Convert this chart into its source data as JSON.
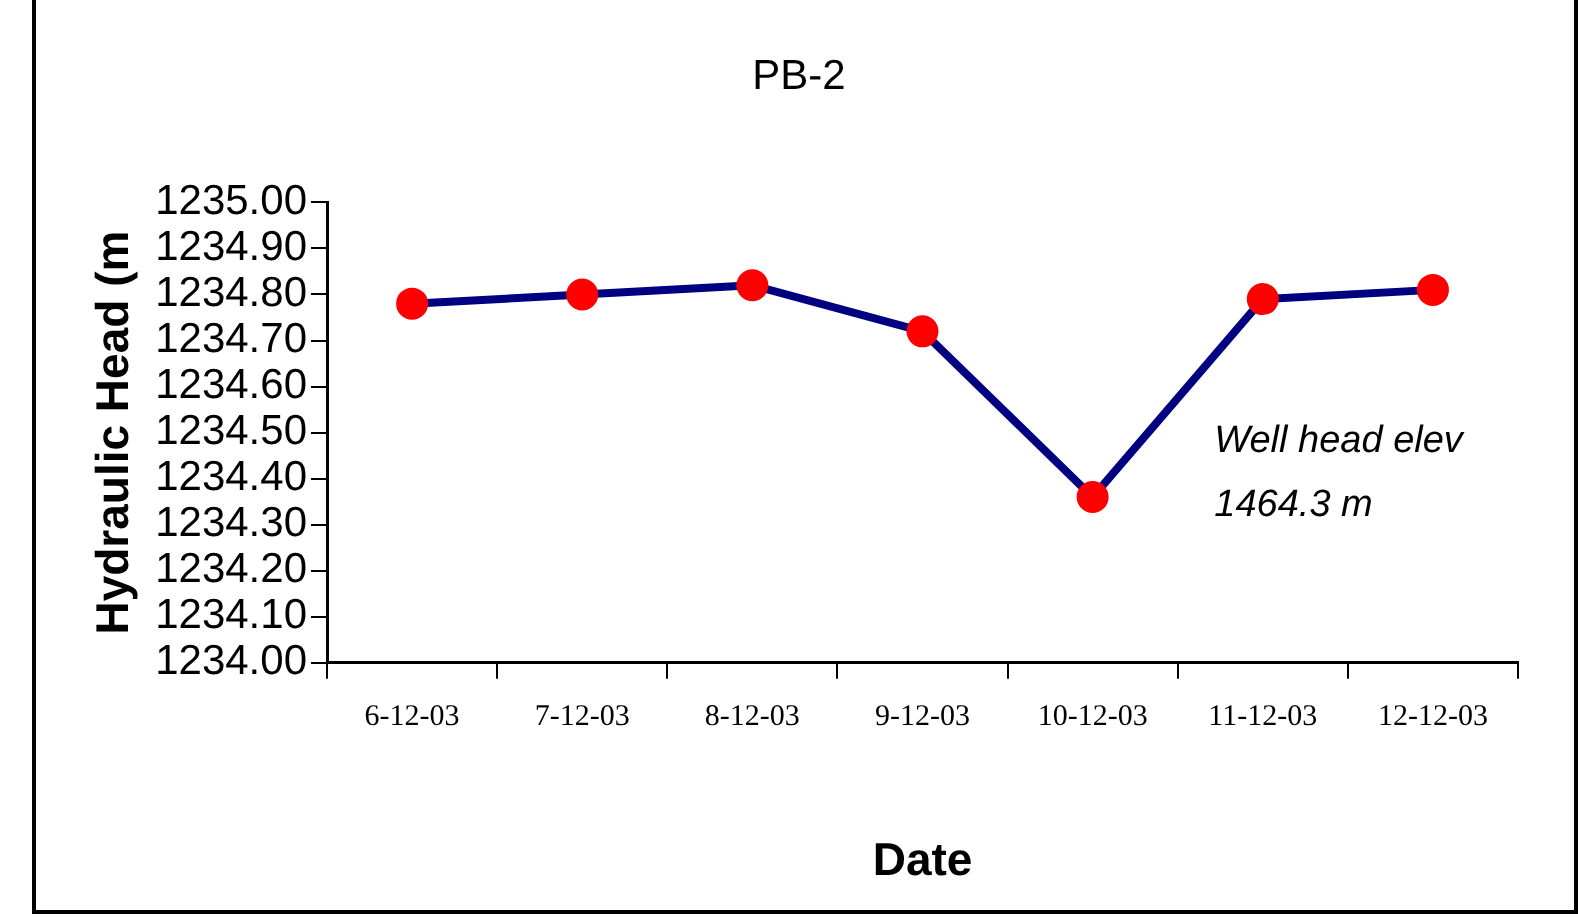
{
  "chart_data": {
    "type": "line",
    "title": "PB-2",
    "xlabel": "Date",
    "ylabel": "Hydraulic Head (m",
    "categories": [
      "6-12-03",
      "7-12-03",
      "8-12-03",
      "9-12-03",
      "10-12-03",
      "11-12-03",
      "12-12-03"
    ],
    "series": [
      {
        "color": "#000080",
        "colors": [
          "#ff0000",
          "#ff0000",
          "#ff0000",
          "#ff0000",
          "#ff0000",
          "#ff0000",
          "#ff0000"
        ],
        "values": [
          1234.78,
          1234.8,
          1234.82,
          1234.72,
          1234.36,
          1234.79,
          1234.81
        ]
      }
    ],
    "ylim": [
      1234.0,
      1235.0
    ],
    "yticks": [
      {
        "value": 1234.0,
        "label": "1234.00"
      },
      {
        "value": 1234.1,
        "label": "1234.10"
      },
      {
        "value": 1234.2,
        "label": "1234.20"
      },
      {
        "value": 1234.3,
        "label": "1234.30"
      },
      {
        "value": 1234.4,
        "label": "1234.40"
      },
      {
        "value": 1234.5,
        "label": "1234.50"
      },
      {
        "value": 1234.6,
        "label": "1234.60"
      },
      {
        "value": 1234.7,
        "label": "1234.70"
      },
      {
        "value": 1234.8,
        "label": "1234.80"
      },
      {
        "value": 1234.9,
        "label": "1234.90"
      },
      {
        "value": 1235.0,
        "label": "1235.00"
      }
    ],
    "annotations": [
      "Well head elev",
      "1464.3 m"
    ],
    "marker": "circle",
    "line_style": "solid",
    "legend": false,
    "grid": false
  }
}
